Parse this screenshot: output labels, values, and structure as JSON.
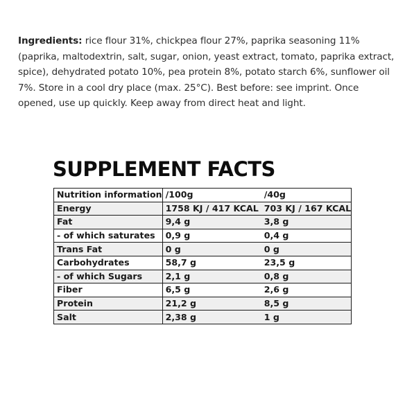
{
  "ingredients": {
    "label": "Ingredients:",
    "text": " rice flour 31%, chickpea flour 27%, paprika seasoning 11% (paprika, maltodextrin, salt, sugar, onion, yeast extract, tomato, paprika extract, spice), dehydrated potato 10%, pea protein 8%, potato starch 6%, sunflower oil 7%. Store in a cool dry place (max. 25°C). Best before: see imprint. Once opened, use up quickly. Keep away from direct heat and light."
  },
  "facts": {
    "title": "SUPPLEMENT FACTS",
    "header": [
      "Nutrition information",
      "/100g",
      "/40g"
    ],
    "rows": [
      [
        "Energy",
        "1758 KJ / 417 KCAL",
        "703 KJ / 167 KCAL"
      ],
      [
        "Fat",
        "9,4 g",
        "3,8 g"
      ],
      [
        "- of which saturates",
        "0,9 g",
        "0,4 g"
      ],
      [
        "Trans Fat",
        "0 g",
        "0 g"
      ],
      [
        "Carbohydrates",
        "58,7 g",
        "23,5 g"
      ],
      [
        "- of which Sugars",
        "2,1 g",
        "0,8 g"
      ],
      [
        "Fiber",
        "6,5 g",
        "2,6 g"
      ],
      [
        "Protein",
        "21,2 g",
        "8,5 g"
      ],
      [
        "Salt",
        "2,38 g",
        "1 g"
      ]
    ]
  }
}
